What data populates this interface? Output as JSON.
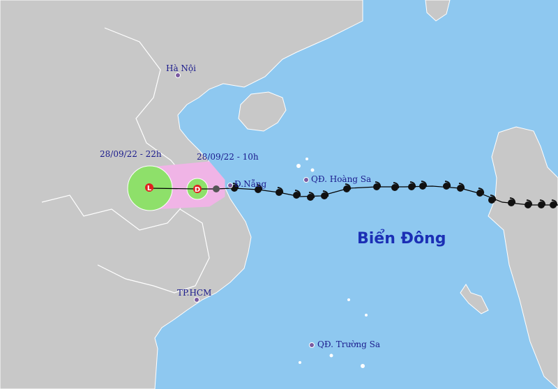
{
  "map": {
    "sea_label": "Biển Đông",
    "places": [
      {
        "id": "hanoi",
        "name": "Hà Nội"
      },
      {
        "id": "danang",
        "name": "Đ.Nẵng"
      },
      {
        "id": "hcm",
        "name": "TP.HCM"
      },
      {
        "id": "hoangsa",
        "name": "QĐ. Hoàng Sa"
      },
      {
        "id": "truongsa",
        "name": "QĐ. Trường Sa"
      }
    ],
    "forecast": [
      {
        "time": "28/09/22 - 10h",
        "symbol": "D"
      },
      {
        "time": "28/09/22 - 22h",
        "symbol": "L"
      }
    ],
    "colors": {
      "sea": "#8ec8f0",
      "land": "#c8c8c8",
      "risk_zone": "#f0b4e6",
      "forecast_circle": "#8ee06a",
      "track": "#000000",
      "label": "#1a1a8c"
    }
  }
}
